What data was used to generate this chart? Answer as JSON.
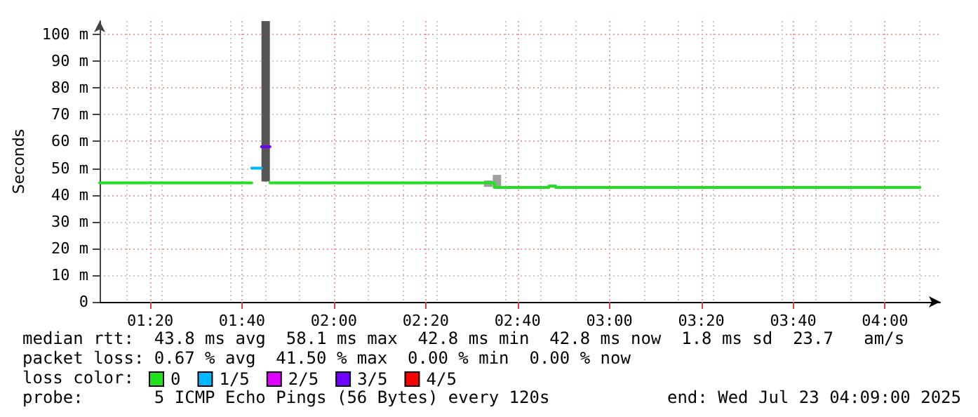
{
  "chart_data": {
    "type": "line",
    "ylabel": "Seconds",
    "legend_title": "loss color:",
    "xlim": [
      1.15,
      4.2
    ],
    "ylim": [
      0,
      105
    ],
    "xticks": [
      {
        "value": 1.3333,
        "label": "01:20"
      },
      {
        "value": 1.6667,
        "label": "01:40"
      },
      {
        "value": 2,
        "label": "02:00"
      },
      {
        "value": 2.3333,
        "label": "02:20"
      },
      {
        "value": 2.6667,
        "label": "02:40"
      },
      {
        "value": 3,
        "label": "03:00"
      },
      {
        "value": 3.3333,
        "label": "03:20"
      },
      {
        "value": 3.6667,
        "label": "03:40"
      },
      {
        "value": 4,
        "label": "04:00"
      }
    ],
    "yticks": [
      0,
      {
        "value": 10,
        "label": "10 m"
      },
      {
        "value": 20,
        "label": "20 m"
      },
      {
        "value": 30,
        "label": "30 m"
      },
      {
        "value": 40,
        "label": "40 m"
      },
      {
        "value": 50,
        "label": "50 m"
      },
      {
        "value": 60,
        "label": "60 m"
      },
      {
        "value": 70,
        "label": "70 m"
      },
      {
        "value": 80,
        "label": "80 m"
      },
      {
        "value": 90,
        "label": "90 m"
      },
      {
        "value": 100,
        "label": "100 m"
      }
    ],
    "grid": true,
    "legend": "bottom left",
    "marker": "none",
    "line_style": "solid",
    "series": [
      {
        "type": "bar",
        "color": "#555555",
        "x": [
          1.7525
        ],
        "base": [
          45
        ],
        "values": [
          60
        ]
      },
      {
        "type": "bar",
        "color": "#a0a0a0",
        "x": [
          2.56,
          2.5917
        ],
        "base": [
          43,
          42.5
        ],
        "values": [
          2.4,
          5
        ]
      },
      {
        "name": "0",
        "color": "#20e020",
        "x": [
          1.15,
          1.702
        ],
        "values": [
          44.5,
          44.5
        ]
      },
      {
        "color": "#20e020",
        "x": [
          1.768,
          2.583,
          2.583,
          2.78,
          2.78,
          2.805,
          2.805,
          4.127
        ],
        "values": [
          44.5,
          44.5,
          42.8,
          42.8,
          43.3,
          43.3,
          42.8,
          42.8
        ]
      },
      {
        "name": "1/5",
        "color": "#00b8ff",
        "x": [
          1.702,
          1.737
        ],
        "values": [
          50,
          50
        ]
      },
      {
        "name": "2/5",
        "color": "#e000ff"
      },
      {
        "name": "3/5",
        "color": "#7000ff",
        "x": [
          1.737,
          1.768
        ],
        "values": [
          58,
          58
        ]
      },
      {
        "name": "4/5",
        "color": "#ff0000"
      }
    ],
    "annotations": [
      "median rtt:  43.8 ms avg  58.1 ms max  42.8 ms min  42.8 ms now  1.8 ms sd  23.7   am/s",
      "packet loss: 0.67 % avg  41.50 % max  0.00 % min  0.00 % now",
      "probe:       5 ICMP Echo Pings (56 Bytes) every 120s",
      "end: Wed Jul 23 04:09:00 2025"
    ]
  }
}
